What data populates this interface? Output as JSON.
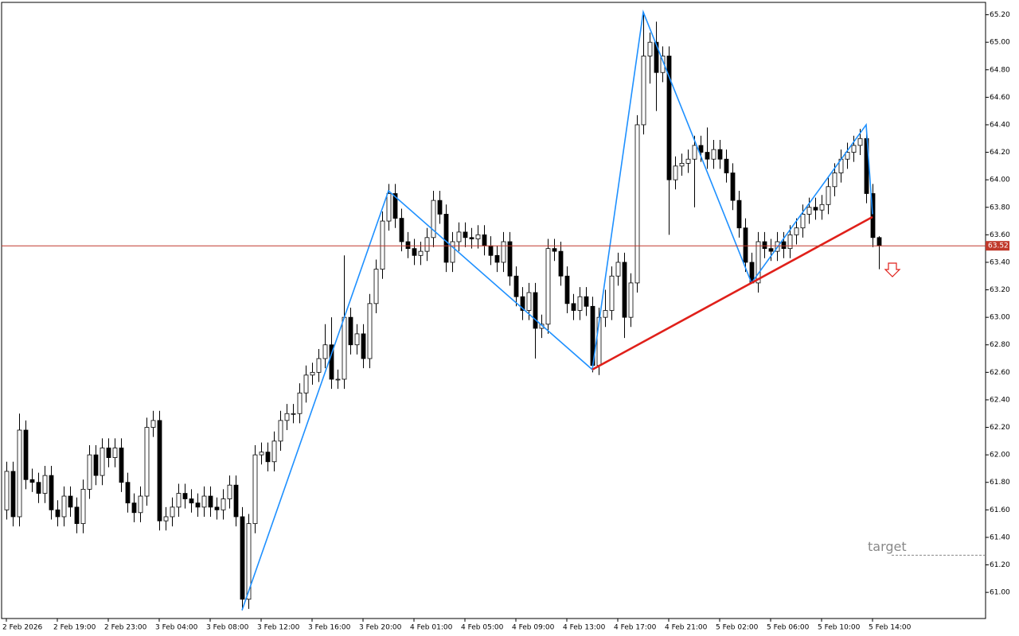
{
  "chart_data": {
    "type": "candlestick",
    "ylim": [
      60.81,
      65.29
    ],
    "yticks": [
      {
        "value": 61.0,
        "label": "61.00"
      },
      {
        "value": 61.2,
        "label": "61.20"
      },
      {
        "value": 61.4,
        "label": "61.40"
      },
      {
        "value": 61.6,
        "label": "61.60"
      },
      {
        "value": 61.8,
        "label": "61.80"
      },
      {
        "value": 62.0,
        "label": "62.00"
      },
      {
        "value": 62.2,
        "label": "62.20"
      },
      {
        "value": 62.4,
        "label": "62.40"
      },
      {
        "value": 62.6,
        "label": "62.60"
      },
      {
        "value": 62.8,
        "label": "62.80"
      },
      {
        "value": 63.0,
        "label": "63.00"
      },
      {
        "value": 63.2,
        "label": "63.20"
      },
      {
        "value": 63.4,
        "label": "63.40"
      },
      {
        "value": 63.6,
        "label": "63.60"
      },
      {
        "value": 63.8,
        "label": "63.80"
      },
      {
        "value": 64.0,
        "label": "64.00"
      },
      {
        "value": 64.2,
        "label": "64.20"
      },
      {
        "value": 64.4,
        "label": "64.40"
      },
      {
        "value": 64.6,
        "label": "64.60"
      },
      {
        "value": 64.8,
        "label": "64.80"
      },
      {
        "value": 65.0,
        "label": "65.00"
      },
      {
        "value": 65.2,
        "label": "65.20"
      }
    ],
    "xticks": [
      {
        "value": 0,
        "label": "2 Feb 2026"
      },
      {
        "value": 8,
        "label": "2 Feb 19:00"
      },
      {
        "value": 16,
        "label": "2 Feb 23:00"
      },
      {
        "value": 24,
        "label": "3 Feb 04:00"
      },
      {
        "value": 32,
        "label": "3 Feb 08:00"
      },
      {
        "value": 40,
        "label": "3 Feb 12:00"
      },
      {
        "value": 48,
        "label": "3 Feb 16:00"
      },
      {
        "value": 56,
        "label": "3 Feb 20:00"
      },
      {
        "value": 64,
        "label": "4 Feb 01:00"
      },
      {
        "value": 72,
        "label": "4 Feb 05:00"
      },
      {
        "value": 80,
        "label": "4 Feb 09:00"
      },
      {
        "value": 88,
        "label": "4 Feb 13:00"
      },
      {
        "value": 96,
        "label": "4 Feb 17:00"
      },
      {
        "value": 104,
        "label": "4 Feb 21:00"
      },
      {
        "value": 112,
        "label": "5 Feb 02:00"
      },
      {
        "value": 120,
        "label": "5 Feb 06:00"
      },
      {
        "value": 128,
        "label": "5 Feb 10:00"
      },
      {
        "value": 136,
        "label": "5 Feb 14:00"
      }
    ],
    "bull_color": "#ffffff",
    "bear_color": "#000000",
    "ohlc": [
      [
        61.6,
        61.95,
        61.53,
        61.88
      ],
      [
        61.88,
        61.95,
        61.48,
        61.55
      ],
      [
        61.55,
        62.3,
        61.48,
        62.18
      ],
      [
        62.18,
        62.25,
        61.75,
        61.82
      ],
      [
        61.82,
        61.9,
        61.73,
        61.8
      ],
      [
        61.8,
        61.87,
        61.65,
        61.72
      ],
      [
        61.72,
        61.92,
        61.65,
        61.85
      ],
      [
        61.85,
        61.92,
        61.53,
        61.6
      ],
      [
        61.6,
        61.67,
        61.48,
        61.55
      ],
      [
        61.55,
        61.77,
        61.48,
        61.7
      ],
      [
        61.7,
        61.77,
        61.55,
        61.62
      ],
      [
        61.62,
        61.69,
        61.43,
        61.5
      ],
      [
        61.5,
        61.82,
        61.43,
        61.75
      ],
      [
        61.75,
        62.07,
        61.68,
        62.0
      ],
      [
        62.0,
        62.07,
        61.78,
        61.85
      ],
      [
        61.85,
        62.12,
        61.78,
        62.05
      ],
      [
        62.05,
        62.12,
        61.91,
        61.98
      ],
      [
        61.98,
        62.12,
        61.91,
        62.05
      ],
      [
        62.05,
        62.12,
        61.73,
        61.8
      ],
      [
        61.8,
        61.87,
        61.58,
        61.65
      ],
      [
        61.65,
        61.72,
        61.51,
        61.58
      ],
      [
        61.58,
        61.77,
        61.51,
        61.7
      ],
      [
        61.7,
        62.27,
        61.63,
        62.2
      ],
      [
        62.2,
        62.32,
        62.13,
        62.25
      ],
      [
        62.25,
        62.32,
        61.45,
        61.52
      ],
      [
        61.52,
        61.62,
        61.45,
        61.55
      ],
      [
        61.55,
        61.69,
        61.48,
        61.62
      ],
      [
        61.62,
        61.79,
        61.55,
        61.72
      ],
      [
        61.72,
        61.79,
        61.61,
        61.68
      ],
      [
        61.68,
        61.75,
        61.58,
        61.65
      ],
      [
        61.65,
        61.72,
        61.55,
        61.62
      ],
      [
        61.62,
        61.77,
        61.55,
        61.7
      ],
      [
        61.7,
        61.77,
        61.55,
        61.62
      ],
      [
        61.62,
        61.69,
        61.53,
        61.6
      ],
      [
        61.6,
        61.75,
        61.53,
        61.68
      ],
      [
        61.68,
        61.85,
        61.61,
        61.78
      ],
      [
        61.78,
        61.85,
        61.48,
        61.55
      ],
      [
        61.55,
        61.62,
        60.87,
        60.95
      ],
      [
        60.95,
        61.57,
        60.88,
        61.5
      ],
      [
        61.5,
        62.07,
        61.43,
        62.0
      ],
      [
        62.0,
        62.09,
        61.93,
        62.02
      ],
      [
        62.02,
        62.09,
        61.88,
        61.95
      ],
      [
        61.95,
        62.17,
        61.88,
        62.1
      ],
      [
        62.1,
        62.32,
        62.03,
        62.25
      ],
      [
        62.25,
        62.37,
        62.18,
        62.3
      ],
      [
        62.3,
        62.37,
        62.23,
        62.3
      ],
      [
        62.3,
        62.52,
        62.23,
        62.45
      ],
      [
        62.45,
        62.65,
        62.38,
        62.58
      ],
      [
        62.58,
        62.67,
        62.51,
        62.6
      ],
      [
        62.6,
        62.77,
        62.53,
        62.7
      ],
      [
        62.7,
        62.95,
        62.63,
        62.8
      ],
      [
        62.8,
        63.0,
        62.48,
        62.55
      ],
      [
        62.55,
        62.62,
        62.48,
        62.55
      ],
      [
        62.55,
        63.45,
        62.48,
        63.0
      ],
      [
        63.0,
        63.07,
        62.73,
        62.8
      ],
      [
        62.8,
        62.95,
        62.73,
        62.88
      ],
      [
        62.88,
        62.95,
        62.63,
        62.7
      ],
      [
        62.7,
        63.17,
        62.63,
        63.1
      ],
      [
        63.1,
        63.42,
        63.03,
        63.35
      ],
      [
        63.35,
        63.77,
        63.28,
        63.7
      ],
      [
        63.7,
        63.97,
        63.63,
        63.9
      ],
      [
        63.9,
        63.97,
        63.65,
        63.72
      ],
      [
        63.72,
        63.79,
        63.48,
        63.55
      ],
      [
        63.55,
        63.62,
        63.43,
        63.5
      ],
      [
        63.5,
        63.57,
        63.38,
        63.45
      ],
      [
        63.45,
        63.55,
        63.38,
        63.48
      ],
      [
        63.48,
        63.65,
        63.41,
        63.58
      ],
      [
        63.58,
        63.92,
        63.51,
        63.85
      ],
      [
        63.85,
        63.92,
        63.68,
        63.75
      ],
      [
        63.75,
        63.82,
        63.33,
        63.4
      ],
      [
        63.4,
        63.62,
        63.33,
        63.55
      ],
      [
        63.55,
        63.69,
        63.48,
        63.62
      ],
      [
        63.62,
        63.69,
        63.51,
        63.58
      ],
      [
        63.58,
        63.65,
        63.5,
        63.57
      ],
      [
        63.57,
        63.67,
        63.5,
        63.6
      ],
      [
        63.6,
        63.67,
        63.45,
        63.52
      ],
      [
        63.52,
        63.59,
        63.38,
        63.45
      ],
      [
        63.45,
        63.52,
        63.33,
        63.4
      ],
      [
        63.4,
        63.62,
        63.33,
        63.55
      ],
      [
        63.55,
        63.62,
        63.23,
        63.3
      ],
      [
        63.3,
        63.37,
        63.08,
        63.15
      ],
      [
        63.15,
        63.22,
        62.98,
        63.05
      ],
      [
        63.05,
        63.25,
        62.98,
        63.18
      ],
      [
        63.18,
        63.25,
        62.7,
        62.92
      ],
      [
        62.92,
        63.02,
        62.85,
        62.95
      ],
      [
        62.95,
        63.57,
        62.88,
        63.5
      ],
      [
        63.5,
        63.57,
        63.41,
        63.48
      ],
      [
        63.48,
        63.55,
        63.23,
        63.3
      ],
      [
        63.3,
        63.37,
        63.03,
        63.1
      ],
      [
        63.1,
        63.17,
        62.98,
        63.05
      ],
      [
        63.05,
        63.22,
        62.98,
        63.15
      ],
      [
        63.15,
        63.22,
        63.01,
        63.08
      ],
      [
        63.08,
        63.15,
        62.6,
        62.65
      ],
      [
        62.65,
        63.07,
        62.58,
        63.0
      ],
      [
        63.0,
        63.2,
        62.93,
        63.05
      ],
      [
        63.05,
        63.37,
        62.98,
        63.3
      ],
      [
        63.3,
        63.47,
        63.23,
        63.4
      ],
      [
        63.4,
        63.47,
        62.85,
        63.0
      ],
      [
        63.0,
        63.32,
        62.93,
        63.25
      ],
      [
        63.25,
        64.47,
        63.18,
        64.4
      ],
      [
        64.4,
        65.22,
        64.33,
        64.9
      ],
      [
        64.9,
        65.07,
        64.7,
        65.0
      ],
      [
        65.0,
        65.15,
        64.5,
        64.78
      ],
      [
        64.78,
        64.97,
        64.71,
        64.9
      ],
      [
        64.9,
        64.97,
        63.6,
        64.0
      ],
      [
        64.0,
        64.17,
        63.93,
        64.1
      ],
      [
        64.1,
        64.19,
        64.03,
        64.12
      ],
      [
        64.12,
        64.22,
        64.05,
        64.15
      ],
      [
        64.15,
        64.32,
        63.8,
        64.25
      ],
      [
        64.25,
        64.32,
        64.13,
        64.2
      ],
      [
        64.2,
        64.38,
        64.08,
        64.15
      ],
      [
        64.15,
        64.29,
        64.08,
        64.22
      ],
      [
        64.22,
        64.29,
        64.08,
        64.15
      ],
      [
        64.15,
        64.22,
        63.98,
        64.05
      ],
      [
        64.05,
        64.12,
        63.78,
        63.85
      ],
      [
        63.85,
        63.92,
        63.58,
        63.65
      ],
      [
        63.65,
        63.72,
        63.33,
        63.4
      ],
      [
        63.4,
        63.47,
        63.25,
        63.25
      ],
      [
        63.25,
        63.62,
        63.18,
        63.55
      ],
      [
        63.55,
        63.62,
        63.43,
        63.5
      ],
      [
        63.5,
        63.57,
        63.41,
        63.48
      ],
      [
        63.48,
        63.62,
        63.41,
        63.55
      ],
      [
        63.55,
        63.62,
        63.43,
        63.5
      ],
      [
        63.5,
        63.67,
        63.43,
        63.6
      ],
      [
        63.6,
        63.72,
        63.53,
        63.65
      ],
      [
        63.65,
        63.82,
        63.58,
        63.75
      ],
      [
        63.75,
        63.87,
        63.68,
        63.8
      ],
      [
        63.8,
        63.87,
        63.71,
        63.78
      ],
      [
        63.78,
        63.89,
        63.71,
        63.82
      ],
      [
        63.82,
        64.02,
        63.75,
        63.95
      ],
      [
        63.95,
        64.12,
        63.88,
        64.05
      ],
      [
        64.05,
        64.22,
        63.98,
        64.15
      ],
      [
        64.15,
        64.27,
        64.08,
        64.2
      ],
      [
        64.2,
        64.32,
        64.13,
        64.25
      ],
      [
        64.25,
        64.37,
        64.18,
        64.3
      ],
      [
        64.3,
        64.37,
        63.83,
        63.9
      ],
      [
        63.9,
        63.97,
        63.51,
        63.58
      ],
      [
        63.58,
        63.59,
        63.35,
        63.52
      ]
    ],
    "zigzag": {
      "color": "#1e90ff",
      "x": [
        37,
        60,
        92,
        100,
        117,
        135,
        136
      ],
      "values": [
        60.87,
        63.92,
        62.62,
        65.22,
        63.25,
        64.4,
        63.75
      ]
    },
    "trendline": {
      "color": "#e0201a",
      "x": [
        92,
        136
      ],
      "values": [
        62.62,
        63.73
      ]
    },
    "last_price": {
      "value": 63.52,
      "label": "63.52",
      "color": "#c0392b"
    },
    "target": {
      "value": 61.27,
      "label": "target"
    }
  }
}
